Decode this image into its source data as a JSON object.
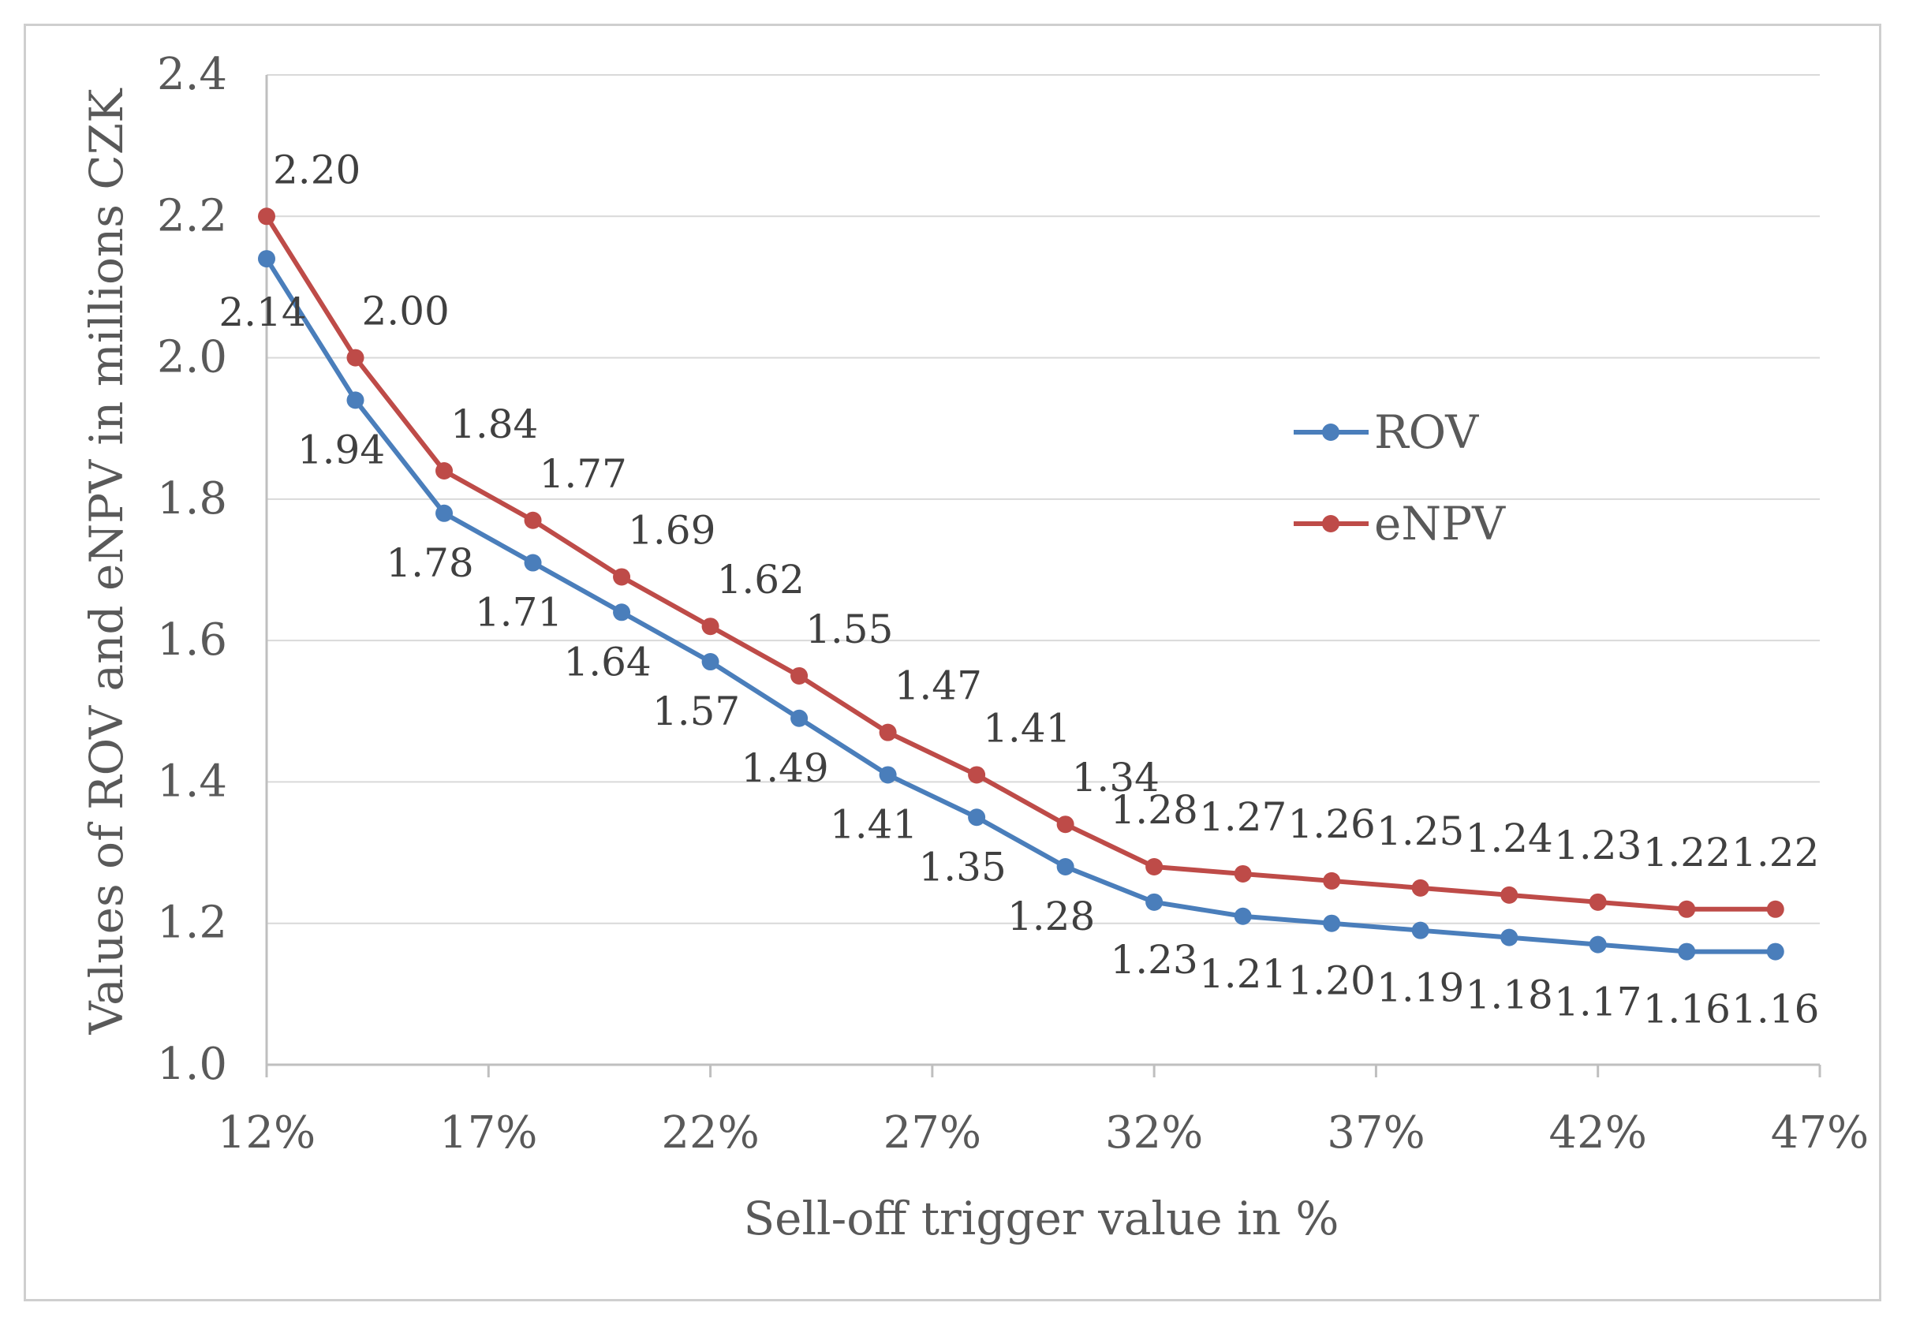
{
  "chart_data": {
    "type": "line",
    "title": "",
    "xlabel": "Sell-off trigger value in %",
    "ylabel": "Values of ROV and eNPV in millions CZK",
    "x": [
      12,
      14,
      16,
      18,
      20,
      22,
      24,
      26,
      28,
      30,
      32,
      34,
      36,
      38,
      40,
      42,
      44,
      46
    ],
    "xlim": [
      12,
      47
    ],
    "xticks": [
      12,
      17,
      22,
      27,
      32,
      37,
      42,
      47
    ],
    "xtick_labels": [
      "12%",
      "17%",
      "22%",
      "27%",
      "32%",
      "37%",
      "42%",
      "47%"
    ],
    "ylim": [
      1.0,
      2.4
    ],
    "yticks": [
      1.0,
      1.2,
      1.4,
      1.6,
      1.8,
      2.0,
      2.2,
      2.4
    ],
    "ytick_labels": [
      "1.0",
      "1.2",
      "1.4",
      "1.6",
      "1.8",
      "2.0",
      "2.2",
      "2.4"
    ],
    "grid": true,
    "legend": "right-center",
    "series": [
      {
        "name": "ROV",
        "color": "#4a7ebb",
        "values": [
          2.14,
          1.94,
          1.78,
          1.71,
          1.64,
          1.57,
          1.49,
          1.41,
          1.35,
          1.28,
          1.23,
          1.21,
          1.2,
          1.19,
          1.18,
          1.17,
          1.16,
          1.16
        ],
        "labels": [
          "2.14",
          "1.94",
          "1.78",
          "1.71",
          "1.64",
          "1.57",
          "1.49",
          "1.41",
          "1.35",
          "1.28",
          "1.23",
          "1.21",
          "1.20",
          "1.19",
          "1.18",
          "1.17",
          "1.16",
          "1.16"
        ]
      },
      {
        "name": "eNPV",
        "color": "#be4b48",
        "values": [
          2.2,
          2.0,
          1.84,
          1.77,
          1.69,
          1.62,
          1.55,
          1.47,
          1.41,
          1.34,
          1.28,
          1.27,
          1.26,
          1.25,
          1.24,
          1.23,
          1.22,
          1.22
        ],
        "labels": [
          "2.20",
          "2.00",
          "1.84",
          "1.77",
          "1.69",
          "1.62",
          "1.55",
          "1.47",
          "1.41",
          "1.34",
          "1.28",
          "1.27",
          "1.26",
          "1.25",
          "1.24",
          "1.23",
          "1.22",
          "1.22"
        ]
      }
    ]
  }
}
